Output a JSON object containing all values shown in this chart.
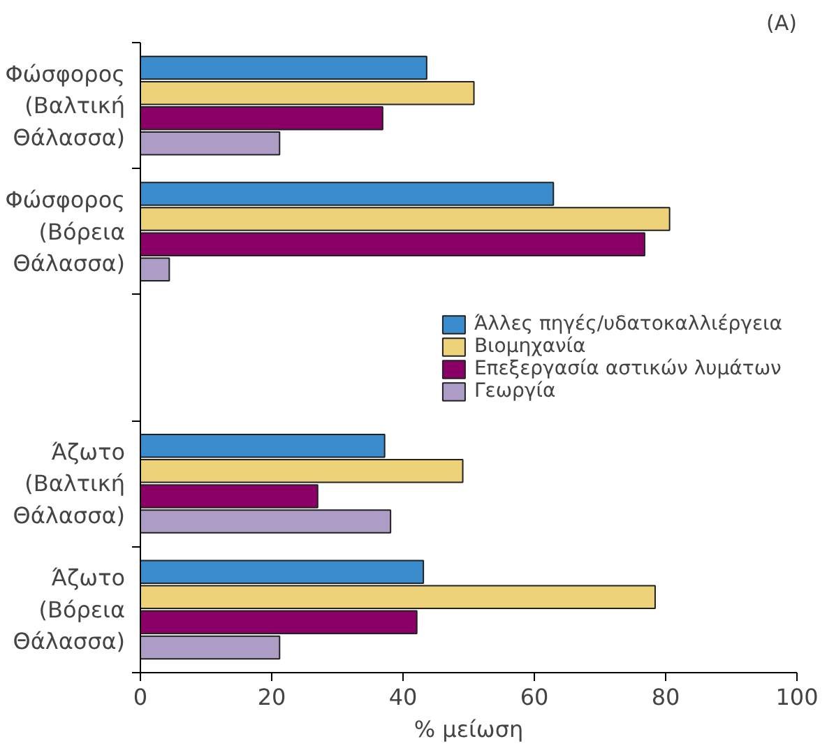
{
  "chart_data": {
    "type": "bar",
    "orientation": "horizontal",
    "title": "(A)",
    "xlabel": "% μείωση",
    "categories": [
      "Φώσφορος\n(Βαλτική\nΘάλασσα)",
      "Φώσφορος\n(Βόρεια\nΘάλασσα)",
      null,
      "Άζωτο\n(Βαλτική\nΘάλασσα)",
      "Άζωτο\n(Βόρεια\nΘάλασσα)"
    ],
    "series": [
      {
        "name": "Άλλες πηγές/υδατοκαλλιέργεια",
        "color": "#3a8ccd",
        "values": [
          43.6,
          62.9,
          null,
          37.2,
          43.1
        ]
      },
      {
        "name": "Βιομηχανία",
        "color": "#edd27a",
        "values": [
          50.8,
          80.6,
          null,
          49.1,
          78.4
        ]
      },
      {
        "name": "Επεξεργασία αστικών λυμάτων",
        "color": "#8b0066",
        "values": [
          36.9,
          76.8,
          null,
          27.0,
          42.1
        ]
      },
      {
        "name": "Γεωργία",
        "color": "#ad9cc5",
        "values": [
          21.2,
          4.4,
          null,
          38.1,
          21.2
        ]
      }
    ],
    "xlim": [
      0,
      100
    ],
    "xticks": [
      0,
      20,
      40,
      60,
      80,
      100
    ],
    "grid": false,
    "legend": "right"
  }
}
